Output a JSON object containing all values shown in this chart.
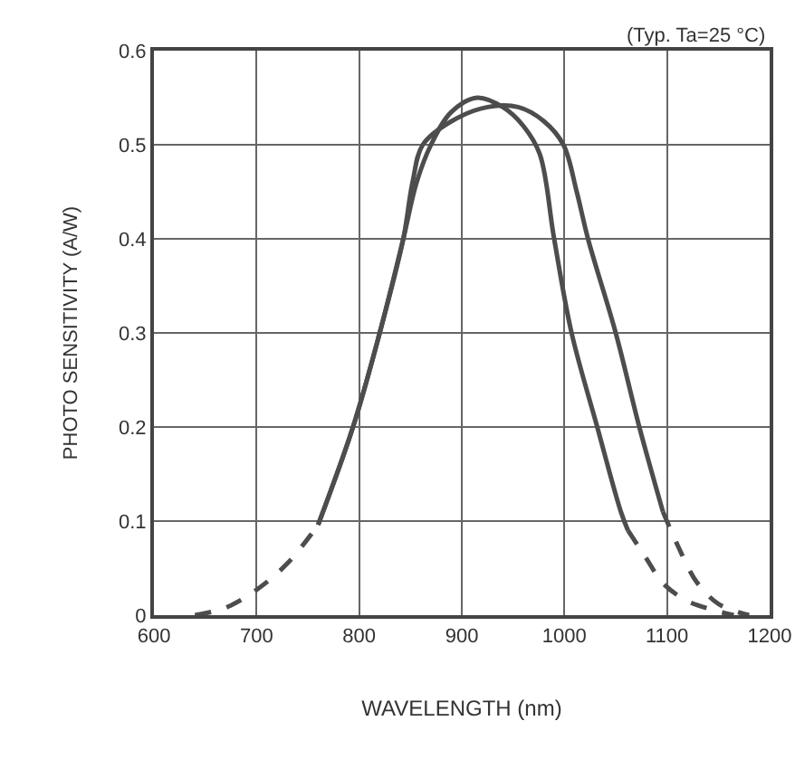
{
  "chart_data": {
    "type": "line",
    "xlabel": "WAVELENGTH (nm)",
    "ylabel": "PHOTO SENSITIVITY (A/W)",
    "annotations": [
      "(Typ. Ta=25 °C)"
    ],
    "xlim": [
      600,
      1200
    ],
    "xticks": [
      600,
      700,
      800,
      900,
      1000,
      1100,
      1200
    ],
    "ylim": [
      0,
      0.6
    ],
    "yticks": [
      0,
      0.1,
      0.2,
      0.3,
      0.4,
      0.5,
      0.6
    ],
    "grid": true,
    "marker": "none",
    "series": [
      {
        "color": "#4d4d4d",
        "line_style": "dashed",
        "x": [
          640,
          670,
          700,
          730,
          760
        ],
        "values": [
          0,
          0.008,
          0.027,
          0.055,
          0.096
        ]
      },
      {
        "color": "#4d4d4d",
        "line_style": "solid",
        "x": [
          760,
          794,
          820,
          843,
          856,
          870,
          890,
          915,
          940,
          960,
          976,
          990,
          1007,
          1032,
          1055,
          1062
        ],
        "values": [
          0.096,
          0.2,
          0.3,
          0.4,
          0.46,
          0.5,
          0.535,
          0.55,
          0.54,
          0.52,
          0.49,
          0.4,
          0.3,
          0.2,
          0.11,
          0.09
        ]
      },
      {
        "color": "#4d4d4d",
        "line_style": "solid",
        "x": [
          760,
          794,
          820,
          843,
          852,
          862,
          890,
          925,
          955,
          980,
          999,
          1012,
          1023,
          1050,
          1073,
          1096
        ],
        "values": [
          0.096,
          0.2,
          0.3,
          0.4,
          0.46,
          0.5,
          0.525,
          0.54,
          0.54,
          0.525,
          0.5,
          0.45,
          0.4,
          0.3,
          0.2,
          0.11
        ]
      },
      {
        "color": "#4d4d4d",
        "line_style": "dashed",
        "x": [
          1062,
          1080,
          1096,
          1120,
          1150,
          1165
        ],
        "values": [
          0.09,
          0.06,
          0.034,
          0.015,
          0.004,
          0
        ]
      },
      {
        "color": "#4d4d4d",
        "line_style": "dashed",
        "x": [
          1096,
          1110,
          1129,
          1150,
          1170,
          1180
        ],
        "values": [
          0.11,
          0.075,
          0.035,
          0.012,
          0.003,
          0
        ]
      }
    ]
  }
}
